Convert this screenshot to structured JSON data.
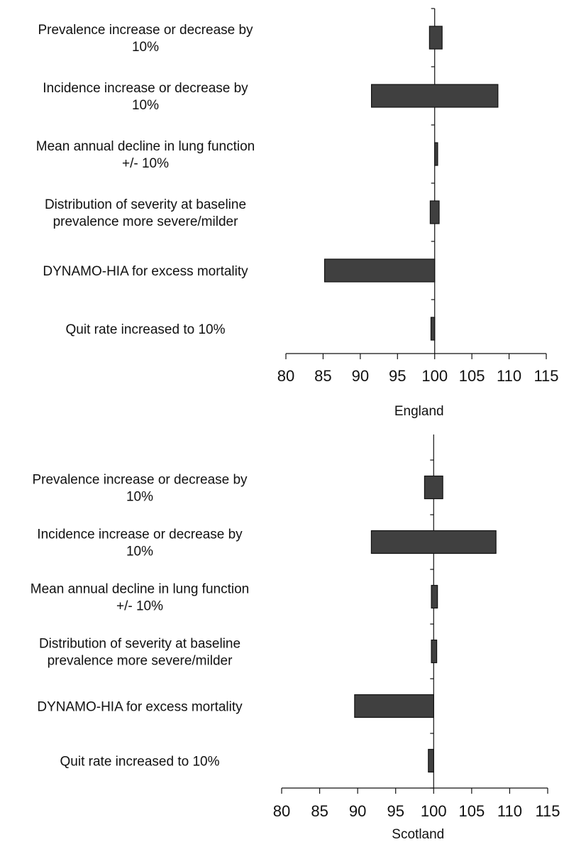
{
  "chart_data": [
    {
      "type": "bar",
      "orientation": "horizontal",
      "chart_style": "tornado",
      "baseline": 100,
      "xlabel": "England",
      "xlim": [
        80,
        115
      ],
      "xticks": [
        "80",
        "85",
        "90",
        "95",
        "100",
        "105",
        "110",
        "115"
      ],
      "categories": [
        [
          "Prevalence increase or decrease by",
          "10%"
        ],
        [
          "Incidence increase or decrease by",
          "10%"
        ],
        [
          "Mean annual decline in lung function",
          "+/- 10%"
        ],
        [
          "Distribution of severity at baseline",
          "prevalence more severe/milder"
        ],
        [
          "DYNAMO-HIA for excess mortality"
        ],
        [
          "Quit rate increased to 10%"
        ]
      ],
      "ranges": [
        [
          99.3,
          101.0
        ],
        [
          91.5,
          108.5
        ],
        [
          100.0,
          100.4
        ],
        [
          99.4,
          100.6
        ],
        [
          85.2,
          100.0
        ],
        [
          99.5,
          100.0
        ]
      ],
      "bar_color": "#404040",
      "grid": false
    },
    {
      "type": "bar",
      "orientation": "horizontal",
      "chart_style": "tornado",
      "baseline": 100,
      "xlabel": "Scotland",
      "xlim": [
        80,
        115
      ],
      "xticks": [
        "80",
        "85",
        "90",
        "95",
        "100",
        "105",
        "110",
        "115"
      ],
      "categories": [
        [
          "Prevalence increase or decrease by",
          "10%"
        ],
        [
          "Incidence increase or decrease by",
          "10%"
        ],
        [
          "Mean annual decline in lung function",
          "+/- 10%"
        ],
        [
          "Distribution of severity at baseline",
          "prevalence more severe/milder"
        ],
        [
          "DYNAMO-HIA for excess mortality"
        ],
        [
          "Quit rate increased to 10%"
        ]
      ],
      "ranges": [
        [
          98.8,
          101.2
        ],
        [
          91.8,
          108.2
        ],
        [
          99.7,
          100.5
        ],
        [
          99.7,
          100.4
        ],
        [
          89.6,
          100.0
        ],
        [
          99.3,
          100.0
        ]
      ],
      "bar_color": "#404040",
      "grid": false
    }
  ]
}
